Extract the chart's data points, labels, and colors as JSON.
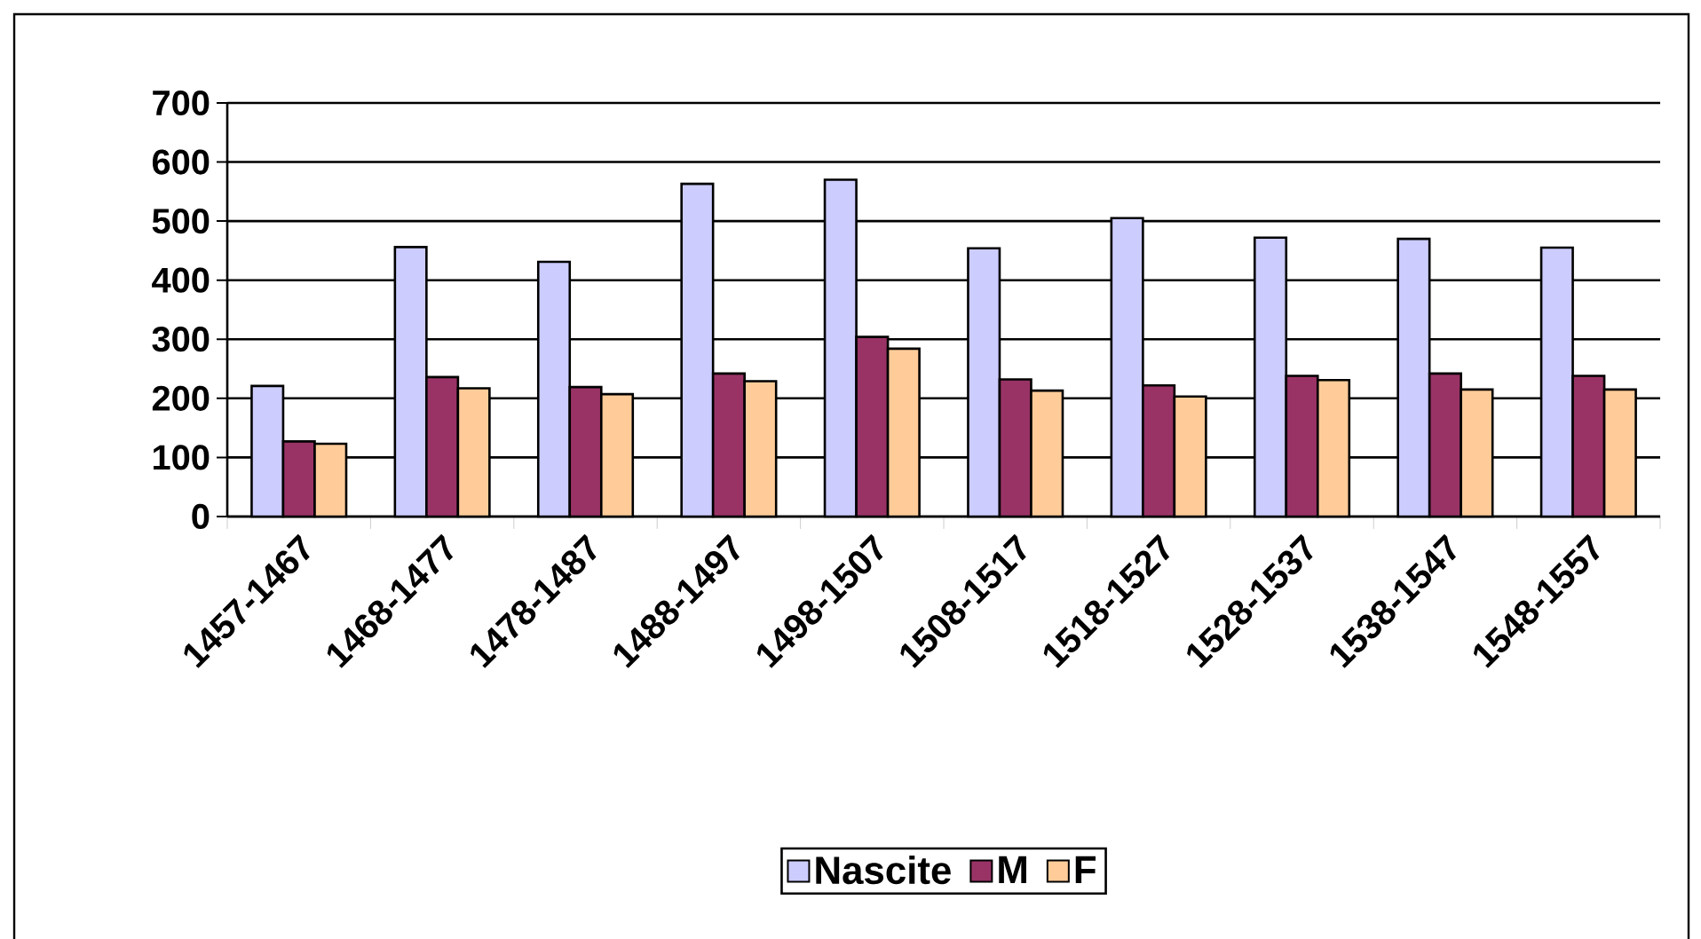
{
  "chart_data": {
    "type": "bar",
    "categories": [
      "1457-1467",
      "1468-1477",
      "1478-1487",
      "1488-1497",
      "1498-1507",
      "1508-1517",
      "1518-1527",
      "1528-1537",
      "1538-1547",
      "1548-1557"
    ],
    "series": [
      {
        "name": "Nascite",
        "color": "#ccccff",
        "values": [
          221,
          456,
          431,
          563,
          570,
          454,
          505,
          472,
          470,
          455
        ]
      },
      {
        "name": "M",
        "color": "#993366",
        "values": [
          127,
          236,
          219,
          242,
          304,
          232,
          222,
          238,
          242,
          238
        ]
      },
      {
        "name": "F",
        "color": "#ffcc99",
        "values": [
          123,
          217,
          207,
          229,
          284,
          213,
          203,
          231,
          215,
          215
        ]
      }
    ],
    "ylim": [
      0,
      700
    ],
    "yticks": [
      0,
      100,
      200,
      300,
      400,
      500,
      600,
      700
    ],
    "grid": "y",
    "legend": "bottom"
  }
}
